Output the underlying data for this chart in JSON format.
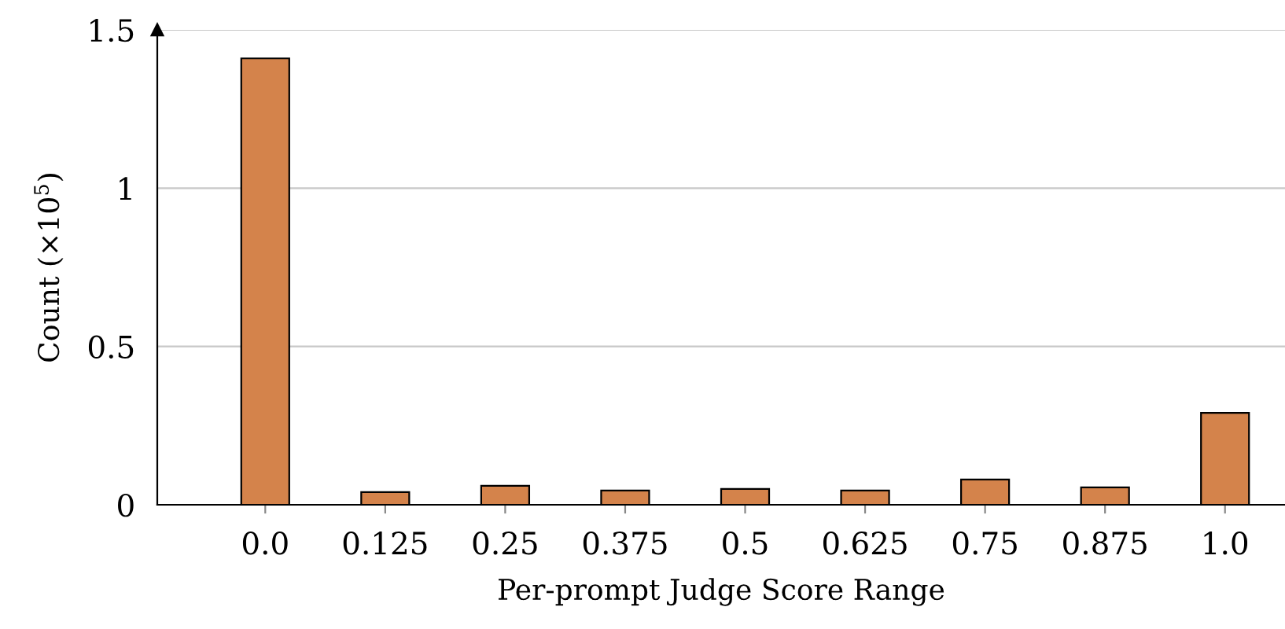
{
  "chart_data": {
    "type": "bar",
    "xlabel": "Per-prompt Judge Score Range",
    "ylabel": "Count (×10$^{5}$)",
    "categories": [
      "0.0",
      "0.125",
      "0.25",
      "0.375",
      "0.5",
      "0.625",
      "0.75",
      "0.875",
      "1.0"
    ],
    "values": [
      1.41,
      0.04,
      0.06,
      0.045,
      0.05,
      0.045,
      0.08,
      0.055,
      0.29
    ],
    "color": "#d4834b",
    "ylim": [
      0,
      1.5
    ],
    "yticks": [
      0,
      0.5,
      1,
      1.5
    ],
    "grid": "y"
  }
}
